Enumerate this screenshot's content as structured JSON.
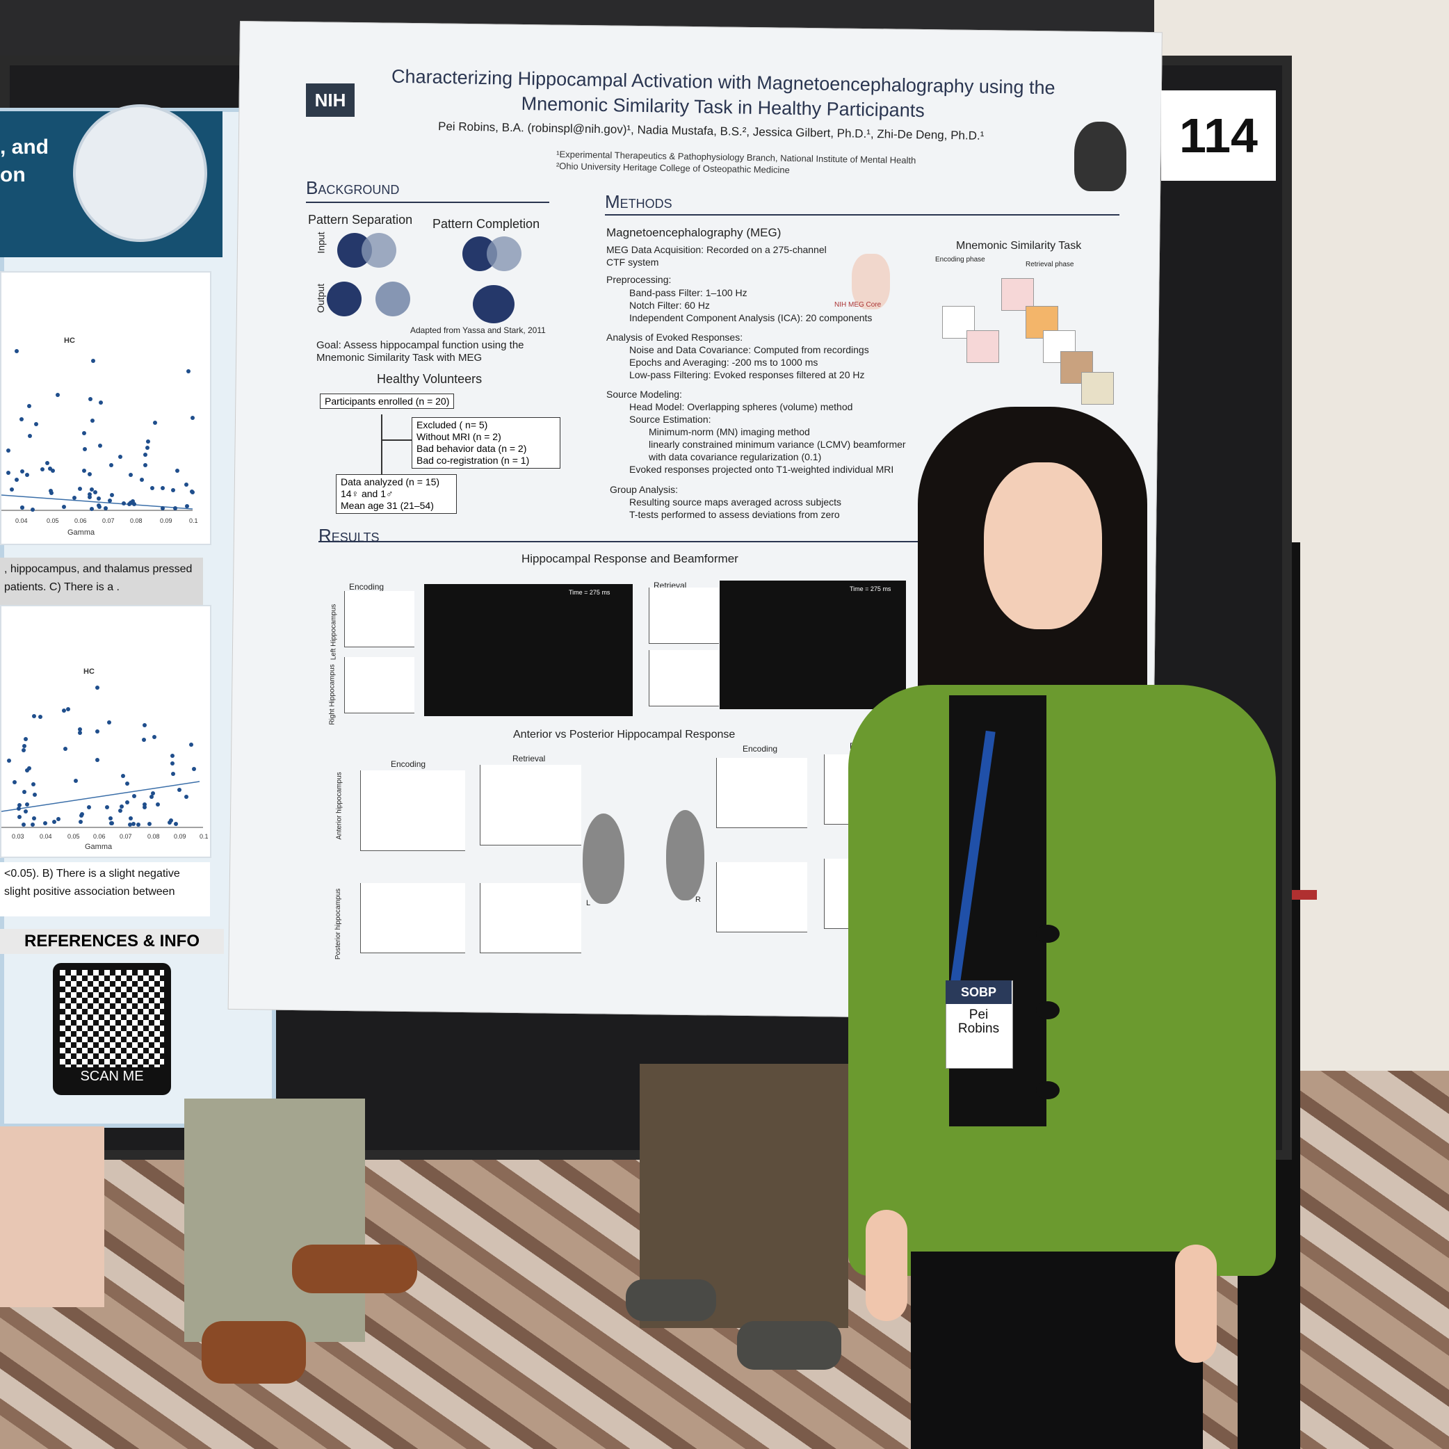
{
  "booth_number": "114",
  "left_poster": {
    "title_lines": [
      ", and",
      "on"
    ],
    "chart1": {
      "label": "HC",
      "xlabel": "Gamma",
      "ticks": [
        "0.04",
        "0.05",
        "0.06",
        "0.07",
        "0.08",
        "0.09",
        "0.1"
      ]
    },
    "caption1": ", hippocampus, and thalamus pressed patients. C) There is a .",
    "chart2": {
      "label": "HC",
      "xlabel": "Gamma",
      "ticks": [
        "0.03",
        "0.04",
        "0.05",
        "0.06",
        "0.07",
        "0.08",
        "0.09",
        "0.1"
      ]
    },
    "caption2": "<0.05). B) There is a slight negative slight positive association between",
    "references": "REFERENCES & INFO",
    "qr_label": "SCAN ME"
  },
  "main_poster": {
    "logo": "NIH",
    "title": "Characterizing Hippocampal Activation with Magnetoencephalography using the Mnemonic Similarity Task in Healthy Participants",
    "authors": "Pei Robins, B.A. (robinspl@nih.gov)¹, Nadia Mustafa, B.S.², Jessica Gilbert, Ph.D.¹, Zhi-De Deng, Ph.D.¹",
    "affiliations": [
      "¹Experimental Therapeutics & Pathophysiology Branch, National Institute of Mental Health",
      "²Ohio University Heritage College of Osteopathic Medicine"
    ],
    "background": {
      "heading": "Background",
      "pattern_separation": "Pattern Separation",
      "pattern_completion": "Pattern Completion",
      "input": "Input",
      "output": "Output",
      "credit": "Adapted from Yassa and Stark, 2011",
      "goal": "Goal: Assess hippocampal function using the Mnemonic Similarity Task with MEG",
      "volunteers_heading": "Healthy Volunteers",
      "enrolled": "Participants enrolled (n = 20)",
      "excluded": [
        "Excluded ( n= 5)",
        "Without MRI (n = 2)",
        "Bad behavior data (n = 2)",
        "Bad co-registration (n = 1)"
      ],
      "analyzed": [
        "Data analyzed (n = 15)",
        "14♀ and 1♂",
        "Mean age 31 (21–54)"
      ]
    },
    "methods": {
      "heading": "Methods",
      "meg_heading": "Magnetoencephalography (MEG)",
      "acquisition": "MEG Data Acquisition: Recorded on a 275-channel CTF system",
      "preprocessing": "Preprocessing:",
      "preprocessing_items": [
        "Band-pass Filter: 1–100 Hz",
        "Notch Filter: 60 Hz",
        "Independent Component Analysis (ICA): 20 components"
      ],
      "evoked": "Analysis of Evoked Responses:",
      "evoked_items": [
        "Noise and Data Covariance: Computed from recordings",
        "Epochs and Averaging: -200 ms to 1000 ms",
        "Low-pass Filtering: Evoked responses filtered at 20 Hz"
      ],
      "source": "Source Modeling:",
      "source_items": [
        "Head Model: Overlapping spheres (volume) method",
        "Source Estimation:",
        "Minimum-norm (MN) imaging method",
        "linearly constrained minimum variance (LCMV) beamformer with data covariance regularization (0.1)",
        "Evoked responses projected onto T1-weighted individual MRI"
      ],
      "group": "Group Analysis:",
      "group_items": [
        "Resulting source maps averaged across subjects",
        "T-tests performed to assess deviations from zero"
      ],
      "task_heading": "Mnemonic Similarity Task",
      "encoding_phase": "Encoding phase",
      "retrieval_phase": "Retrieval phase",
      "meg_core": "NIH MEG Core"
    },
    "results": {
      "heading": "Results",
      "fig1_title": "Hippocampal Response and Beamformer",
      "encoding": "Encoding",
      "retrieval": "Retrieval",
      "time_label": "Time = 275 ms",
      "left_hc": "Left Hippocampus",
      "right_hc": "Right Hippocampus",
      "fig2_title": "Anterior vs Posterior Hippocampal Response",
      "anterior": "Anterior hippocampus",
      "posterior": "Posterior hippocampus",
      "L": "L",
      "R": "R"
    }
  },
  "badge": {
    "org": "SOBP",
    "first_name": "Pei",
    "last_name": "Robins"
  },
  "colors": {
    "jacket": "#6b9a2f",
    "poster_bg": "#f2f4f6",
    "board": "#1c1c1e",
    "hhs_blue": "#165071"
  }
}
